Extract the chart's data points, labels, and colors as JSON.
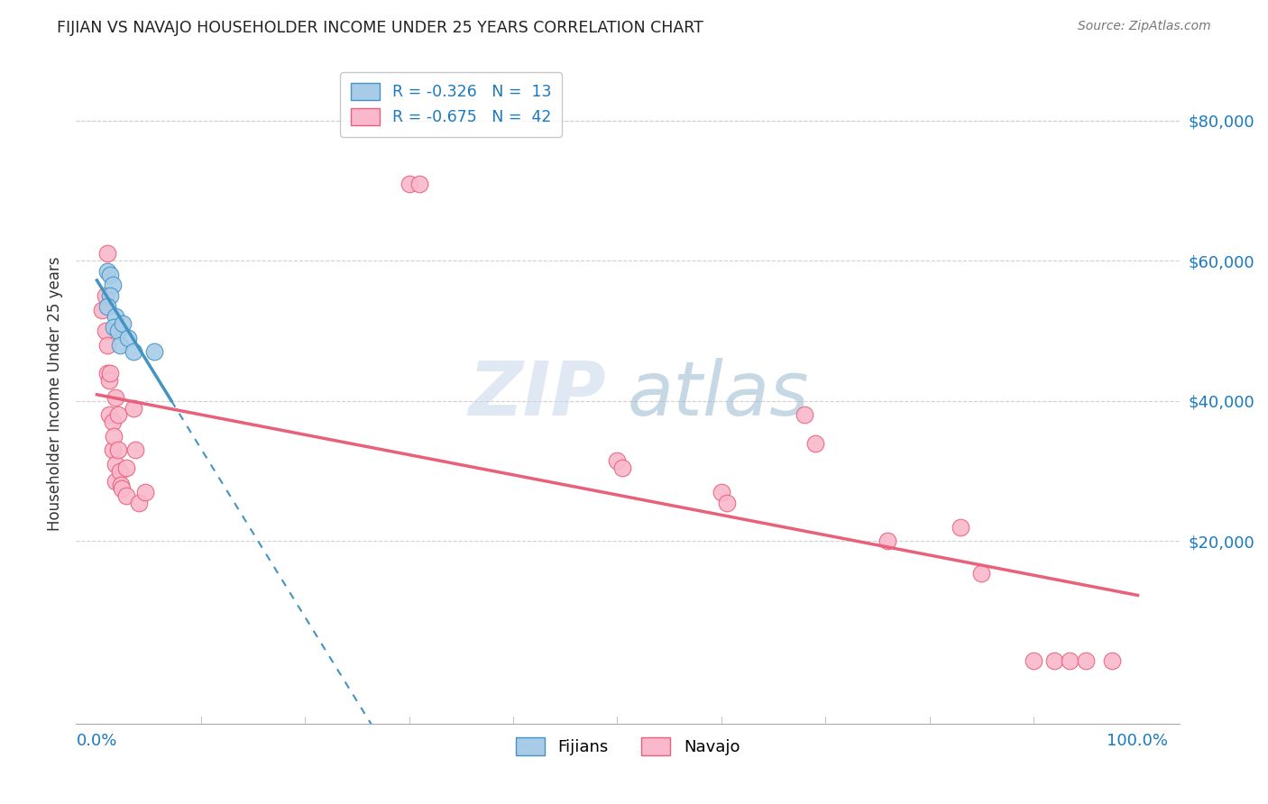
{
  "title": "FIJIAN VS NAVAJO HOUSEHOLDER INCOME UNDER 25 YEARS CORRELATION CHART",
  "source": "Source: ZipAtlas.com",
  "ylabel": "Householder Income Under 25 years",
  "y_tick_labels": [
    "$80,000",
    "$60,000",
    "$40,000",
    "$20,000"
  ],
  "y_tick_values": [
    80000,
    60000,
    40000,
    20000
  ],
  "legend_fijian_r": "R = -0.326",
  "legend_fijian_n": "N =  13",
  "legend_navajo_r": "R = -0.675",
  "legend_navajo_n": "N =  42",
  "fijian_color": "#a8cce8",
  "navajo_color": "#f9b8cb",
  "fijian_line_color": "#4393c3",
  "navajo_line_color": "#e8607a",
  "fijian_scatter": [
    [
      0.01,
      58500
    ],
    [
      0.013,
      58000
    ],
    [
      0.015,
      56500
    ],
    [
      0.013,
      55000
    ],
    [
      0.01,
      53500
    ],
    [
      0.018,
      52000
    ],
    [
      0.016,
      50500
    ],
    [
      0.02,
      50000
    ],
    [
      0.022,
      48000
    ],
    [
      0.025,
      51000
    ],
    [
      0.03,
      49000
    ],
    [
      0.035,
      47000
    ],
    [
      0.055,
      47000
    ]
  ],
  "navajo_scatter": [
    [
      0.005,
      53000
    ],
    [
      0.008,
      50000
    ],
    [
      0.008,
      55000
    ],
    [
      0.01,
      48000
    ],
    [
      0.01,
      44000
    ],
    [
      0.01,
      61000
    ],
    [
      0.012,
      43000
    ],
    [
      0.012,
      38000
    ],
    [
      0.013,
      44000
    ],
    [
      0.015,
      37000
    ],
    [
      0.015,
      33000
    ],
    [
      0.016,
      35000
    ],
    [
      0.018,
      28500
    ],
    [
      0.018,
      31000
    ],
    [
      0.018,
      40500
    ],
    [
      0.02,
      38000
    ],
    [
      0.02,
      33000
    ],
    [
      0.022,
      30000
    ],
    [
      0.023,
      28000
    ],
    [
      0.024,
      27500
    ],
    [
      0.028,
      30500
    ],
    [
      0.028,
      26500
    ],
    [
      0.035,
      39000
    ],
    [
      0.037,
      33000
    ],
    [
      0.04,
      25500
    ],
    [
      0.046,
      27000
    ],
    [
      0.3,
      71000
    ],
    [
      0.31,
      71000
    ],
    [
      0.5,
      31500
    ],
    [
      0.505,
      30500
    ],
    [
      0.6,
      27000
    ],
    [
      0.605,
      25500
    ],
    [
      0.68,
      38000
    ],
    [
      0.69,
      34000
    ],
    [
      0.76,
      20000
    ],
    [
      0.83,
      22000
    ],
    [
      0.85,
      15500
    ],
    [
      0.9,
      3000
    ],
    [
      0.92,
      3000
    ],
    [
      0.935,
      3000
    ],
    [
      0.95,
      3000
    ],
    [
      0.975,
      3000
    ]
  ],
  "xlim": [
    -0.02,
    1.04
  ],
  "ylim": [
    -6000,
    88000
  ],
  "background_color": "#ffffff",
  "grid_color": "#d0d0d0"
}
